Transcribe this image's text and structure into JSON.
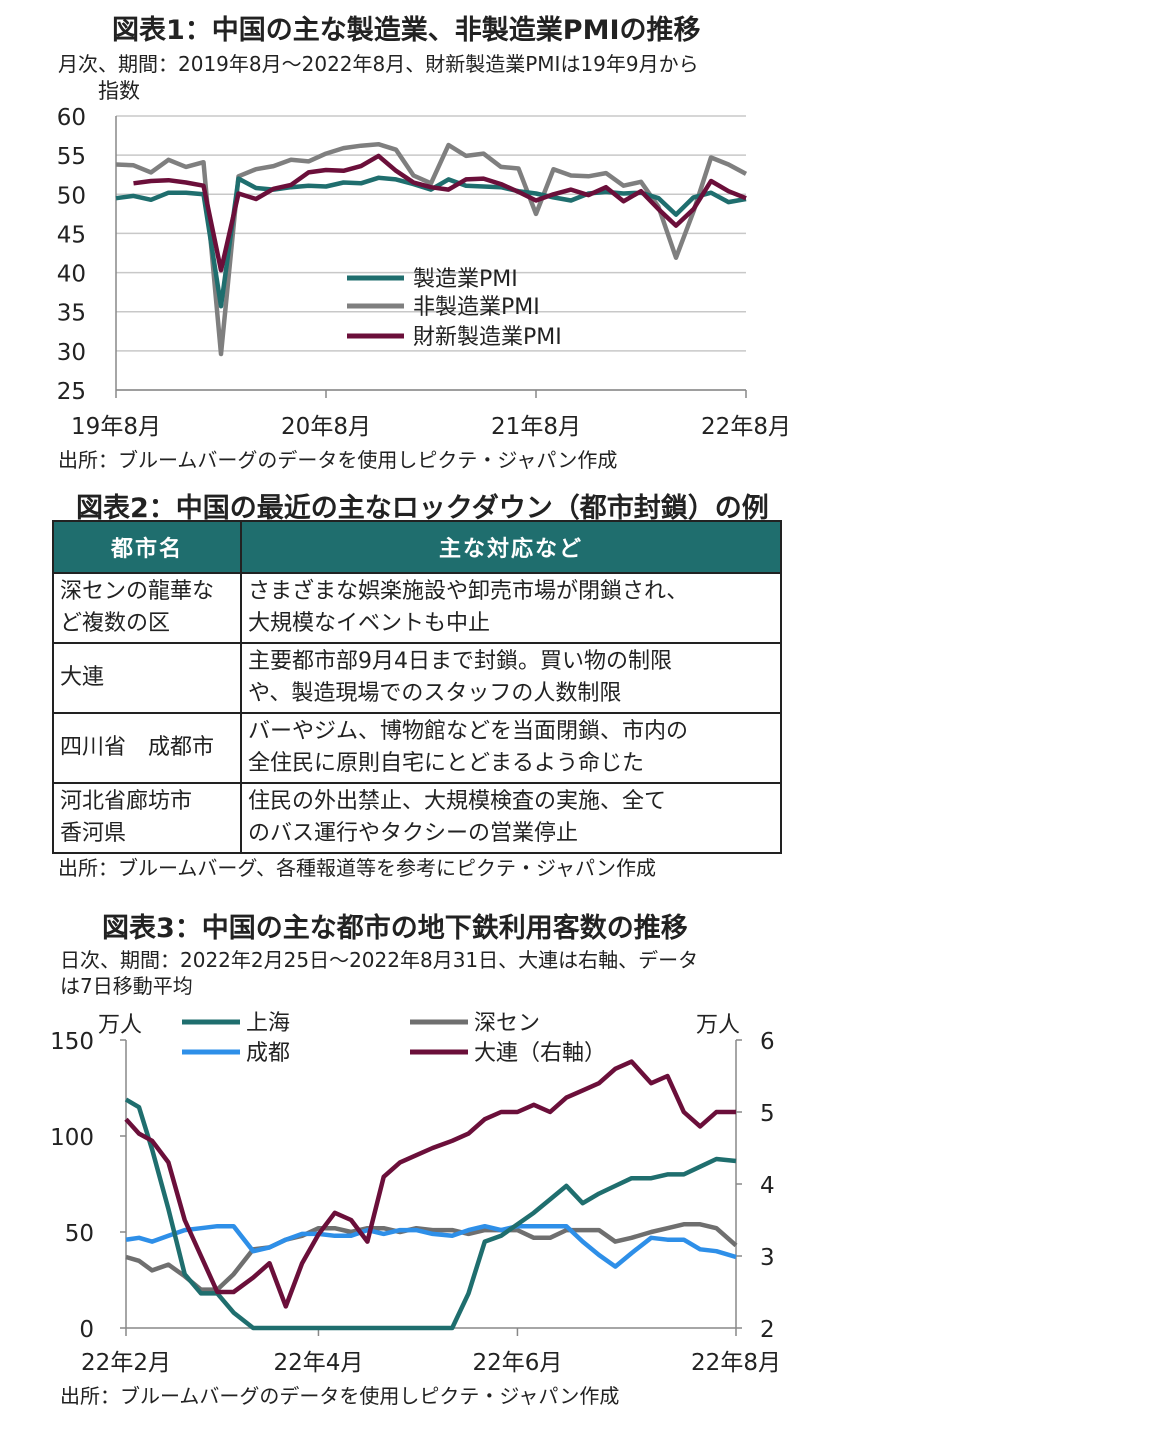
{
  "fig1": {
    "title": "図表1：中国の主な製造業、非製造業PMIの推移",
    "subtitle": "月次、期間：2019年8月～2022年8月、財新製造業PMIは19年9月から",
    "y_unit": "指数",
    "source": "出所：ブルームバーグのデータを使用しピクテ・ジャパン作成",
    "colors": {
      "manufacturing": "#1f6e6e",
      "non_manufacturing": "#7f7f7f",
      "caixin": "#6b0f3a"
    }
  },
  "fig2": {
    "title": "図表2：中国の最近の主なロックダウン（都市封鎖）の例",
    "headers": [
      "都市名",
      "主な対応など"
    ],
    "rows": [
      {
        "city": "深センの龍華な\nど複数の区",
        "measures": "さまざまな娯楽施設や卸売市場が閉鎖され、\n大規模なイベントも中止"
      },
      {
        "city": "大連",
        "measures": "主要都市部9月4日まで封鎖。買い物の制限\nや、製造現場でのスタッフの人数制限"
      },
      {
        "city": "四川省　成都市",
        "measures": "バーやジム、博物館などを当面閉鎖、市内の\n全住民に原則自宅にとどまるよう命じた"
      },
      {
        "city": "河北省廊坊市\n香河県",
        "measures": "住民の外出禁止、大規模検査の実施、全て\nのバス運行やタクシーの営業停止"
      }
    ],
    "source": "出所：ブルームバーグ、各種報道等を参考にピクテ・ジャパン作成",
    "header_color": "#1f6e6e"
  },
  "fig3": {
    "title": "図表3：中国の主な都市の地下鉄利用客数の推移",
    "subtitle_line1": "日次、期間：2022年2月25日～2022年8月31日、大連は右軸、データ",
    "subtitle_line2": "は7日移動平均",
    "left_unit": "万人",
    "right_unit": "万人",
    "source": "出所：ブルームバーグのデータを使用しピクテ・ジャパン作成",
    "colors": {
      "shanghai": "#1f6e6e",
      "shenzhen": "#6f6f6f",
      "chengdu": "#2e8fe8",
      "dalian": "#6b0f3a"
    }
  },
  "chart_data": [
    {
      "type": "line",
      "title": "図表1：中国の主な製造業、非製造業PMIの推移",
      "ylabel": "指数",
      "ylim": [
        25,
        60
      ],
      "yticks": [
        60,
        55,
        50,
        45,
        40,
        35,
        30,
        25
      ],
      "xtick_labels": [
        "19年8月",
        "20年8月",
        "21年8月",
        "22年8月"
      ],
      "xtick_index": [
        0,
        12,
        24,
        36
      ],
      "grid": true,
      "legend": "center",
      "x": [
        "2019-08",
        "2019-09",
        "2019-10",
        "2019-11",
        "2019-12",
        "2020-01",
        "2020-02",
        "2020-03",
        "2020-04",
        "2020-05",
        "2020-06",
        "2020-07",
        "2020-08",
        "2020-09",
        "2020-10",
        "2020-11",
        "2020-12",
        "2021-01",
        "2021-02",
        "2021-03",
        "2021-04",
        "2021-05",
        "2021-06",
        "2021-07",
        "2021-08",
        "2021-09",
        "2021-10",
        "2021-11",
        "2021-12",
        "2022-01",
        "2022-02",
        "2022-03",
        "2022-04",
        "2022-05",
        "2022-06",
        "2022-07",
        "2022-08"
      ],
      "series": [
        {
          "name": "製造業PMI",
          "values": [
            49.5,
            49.8,
            49.3,
            50.2,
            50.2,
            50.0,
            35.7,
            52.0,
            50.8,
            50.6,
            50.9,
            51.1,
            51.0,
            51.5,
            51.4,
            52.1,
            51.9,
            51.3,
            50.6,
            51.9,
            51.1,
            51.0,
            50.9,
            50.4,
            50.1,
            49.6,
            49.2,
            50.1,
            50.3,
            50.1,
            50.2,
            49.5,
            47.4,
            49.6,
            50.2,
            49.0,
            49.4
          ]
        },
        {
          "name": "非製造業PMI",
          "values": [
            53.8,
            53.7,
            52.8,
            54.4,
            53.5,
            54.1,
            29.6,
            52.3,
            53.2,
            53.6,
            54.4,
            54.2,
            55.2,
            55.9,
            56.2,
            56.4,
            55.7,
            52.4,
            51.4,
            56.3,
            54.9,
            55.2,
            53.5,
            53.3,
            47.5,
            53.2,
            52.4,
            52.3,
            52.7,
            51.1,
            51.6,
            48.4,
            41.9,
            47.8,
            54.7,
            53.8,
            52.6
          ]
        },
        {
          "name": "財新製造業PMI",
          "values": [
            null,
            51.4,
            51.7,
            51.8,
            51.5,
            51.1,
            40.3,
            50.1,
            49.4,
            50.7,
            51.2,
            52.8,
            53.1,
            53.0,
            53.6,
            54.9,
            53.0,
            51.5,
            50.9,
            50.6,
            51.9,
            52.0,
            51.3,
            50.3,
            49.2,
            50.0,
            50.6,
            49.9,
            50.9,
            49.1,
            50.4,
            48.1,
            46.0,
            48.1,
            51.7,
            50.4,
            49.5
          ]
        }
      ]
    },
    {
      "type": "table",
      "title": "図表2：中国の最近の主なロックダウン（都市封鎖）の例",
      "columns": [
        "都市名",
        "主な対応など"
      ],
      "rows": [
        [
          "深センの龍華など複数の区",
          "さまざまな娯楽施設や卸売市場が閉鎖され、大規模なイベントも中止"
        ],
        [
          "大連",
          "主要都市部9月4日まで封鎖。買い物の制限や、製造現場でのスタッフの人数制限"
        ],
        [
          "四川省　成都市",
          "バーやジム、博物館などを当面閉鎖、市内の全住民に原則自宅にとどまるよう命じた"
        ],
        [
          "河北省廊坊市香河県",
          "住民の外出禁止、大規模検査の実施、全てのバス運行やタクシーの営業停止"
        ]
      ]
    },
    {
      "type": "line",
      "title": "図表3：中国の主な都市の地下鉄利用客数の推移",
      "ylabel": "万人",
      "ylim": [
        0,
        150
      ],
      "yticks": [
        150,
        100,
        50,
        0
      ],
      "y2label": "万人",
      "y2lim": [
        2,
        6
      ],
      "y2ticks": [
        6,
        5,
        4,
        3,
        2
      ],
      "xtick_labels": [
        "22年2月",
        "22年4月",
        "22年6月",
        "22年8月"
      ],
      "xtick_dates": [
        "2022-02-25",
        "2022-04-25",
        "2022-06-25",
        "2022-08-31"
      ],
      "grid": false,
      "legend": "top",
      "x": [
        "2022-02-25",
        "2022-03-01",
        "2022-03-05",
        "2022-03-10",
        "2022-03-15",
        "2022-03-20",
        "2022-03-25",
        "2022-03-30",
        "2022-04-05",
        "2022-04-10",
        "2022-04-15",
        "2022-04-20",
        "2022-04-25",
        "2022-04-30",
        "2022-05-05",
        "2022-05-10",
        "2022-05-15",
        "2022-05-20",
        "2022-05-25",
        "2022-05-30",
        "2022-06-05",
        "2022-06-10",
        "2022-06-15",
        "2022-06-20",
        "2022-06-25",
        "2022-06-30",
        "2022-07-05",
        "2022-07-10",
        "2022-07-15",
        "2022-07-20",
        "2022-07-25",
        "2022-07-30",
        "2022-08-05",
        "2022-08-10",
        "2022-08-15",
        "2022-08-20",
        "2022-08-25",
        "2022-08-31"
      ],
      "series": [
        {
          "name": "上海",
          "axis": "left",
          "values": [
            119,
            115,
            93,
            62,
            28,
            18,
            18,
            8,
            0,
            0,
            0,
            0,
            0,
            0,
            0,
            0,
            0,
            0,
            0,
            0,
            0,
            18,
            45,
            48,
            54,
            60,
            67,
            74,
            65,
            70,
            74,
            78,
            78,
            80,
            80,
            84,
            88,
            87
          ]
        },
        {
          "name": "深セン",
          "axis": "left",
          "values": [
            37,
            35,
            30,
            33,
            27,
            20,
            20,
            28,
            41,
            42,
            46,
            48,
            52,
            52,
            50,
            52,
            52,
            50,
            52,
            51,
            51,
            49,
            51,
            51,
            51,
            47,
            47,
            51,
            51,
            51,
            45,
            47,
            50,
            52,
            54,
            54,
            52,
            43
          ]
        },
        {
          "name": "成都",
          "axis": "left",
          "values": [
            46,
            47,
            45,
            48,
            51,
            52,
            53,
            53,
            40,
            42,
            46,
            49,
            49,
            48,
            48,
            51,
            49,
            51,
            51,
            49,
            48,
            51,
            53,
            51,
            53,
            53,
            53,
            53,
            45,
            38,
            32,
            39,
            47,
            46,
            46,
            41,
            40,
            37
          ]
        },
        {
          "name": "大連（右軸）",
          "axis": "right",
          "values": [
            4.9,
            4.7,
            4.6,
            4.3,
            3.5,
            3.0,
            2.5,
            2.5,
            2.7,
            2.9,
            2.3,
            2.9,
            3.3,
            3.6,
            3.5,
            3.2,
            4.1,
            4.3,
            4.4,
            4.5,
            4.6,
            4.7,
            4.9,
            5.0,
            5.0,
            5.1,
            5.0,
            5.2,
            5.3,
            5.4,
            5.6,
            5.7,
            5.4,
            5.5,
            5.0,
            4.8,
            5.0,
            5.0
          ]
        }
      ]
    }
  ]
}
